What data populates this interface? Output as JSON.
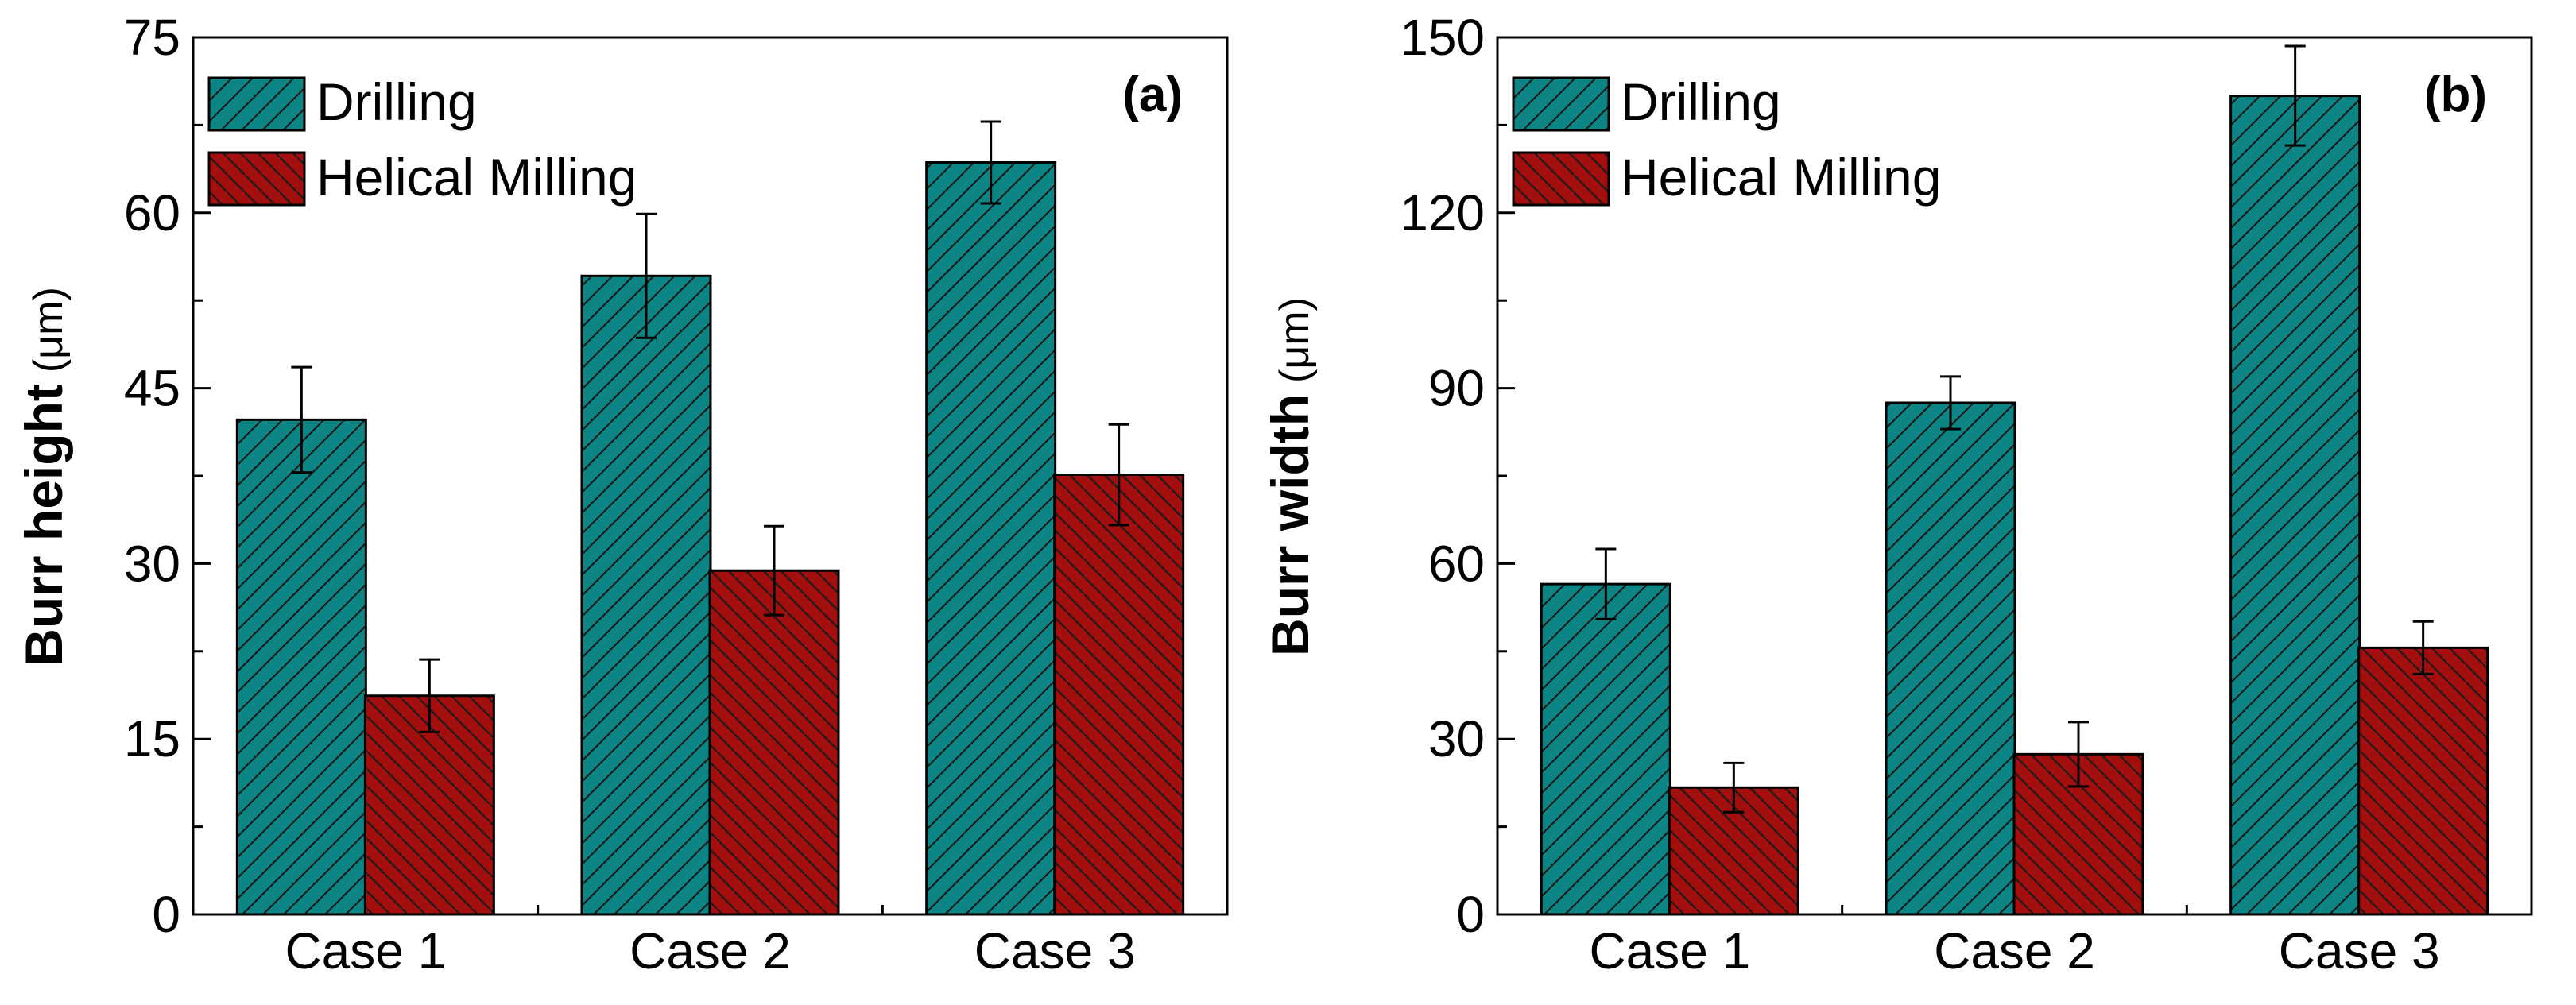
{
  "colors": {
    "drilling": "#0E8585",
    "helical": "#A30E0E",
    "hatch": "#1a1a1a"
  },
  "chart_data": [
    {
      "type": "bar",
      "panel_label": "(a)",
      "categories": [
        "Case 1",
        "Case 2",
        "Case 3"
      ],
      "series": [
        {
          "name": "Drilling",
          "values": [
            42.3,
            54.6,
            64.3
          ],
          "errors": [
            4.5,
            5.3,
            3.5
          ]
        },
        {
          "name": "Helical Milling",
          "values": [
            18.7,
            29.4,
            37.6
          ],
          "errors": [
            3.1,
            3.8,
            4.3
          ]
        }
      ],
      "ylabel": "Burr height",
      "yunit": "(μm)",
      "ylim": [
        0,
        75
      ],
      "yticks": [
        0,
        15,
        30,
        45,
        60,
        75
      ],
      "legend": "top-left"
    },
    {
      "type": "bar",
      "panel_label": "(b)",
      "categories": [
        "Case 1",
        "Case 2",
        "Case 3"
      ],
      "series": [
        {
          "name": "Drilling",
          "values": [
            56.5,
            87.5,
            140
          ],
          "errors": [
            6,
            4.5,
            8.5
          ]
        },
        {
          "name": "Helical Milling",
          "values": [
            21.7,
            27.4,
            45.6
          ],
          "errors": [
            4.2,
            5.5,
            4.5
          ]
        }
      ],
      "ylabel": "Burr width",
      "yunit": "(μm)",
      "ylim": [
        0,
        150
      ],
      "yticks": [
        0,
        30,
        60,
        90,
        120,
        150
      ],
      "legend": "top-left"
    }
  ]
}
